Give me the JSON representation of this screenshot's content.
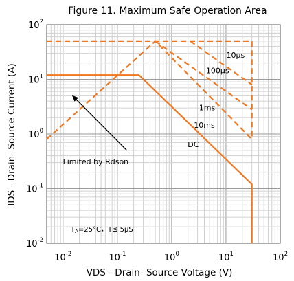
{
  "chart_data": {
    "type": "line",
    "title": "Figure 11. Maximum Safe Operation Area",
    "xlabel": "VDS - Drain- Source Voltage (V)",
    "ylabel": "IDS - Drain- Source Current (A)",
    "xscale": "log",
    "yscale": "log",
    "xlim": [
      0.005,
      100
    ],
    "ylim": [
      0.01,
      100
    ],
    "grid": true,
    "x_ticks": [
      {
        "base": "10",
        "exp": "-2",
        "value": 0.01
      },
      {
        "base": "10",
        "exp": "-1",
        "value": 0.1
      },
      {
        "base": "10",
        "exp": "0",
        "value": 1
      },
      {
        "base": "10",
        "exp": "1",
        "value": 10
      },
      {
        "base": "10",
        "exp": "2",
        "value": 100
      }
    ],
    "y_ticks": [
      {
        "base": "10",
        "exp": "-2",
        "value": 0.01
      },
      {
        "base": "10",
        "exp": "-1",
        "value": 0.1
      },
      {
        "base": "10",
        "exp": "0",
        "value": 1
      },
      {
        "base": "10",
        "exp": "1",
        "value": 10
      },
      {
        "base": "10",
        "exp": "2",
        "value": 100
      }
    ],
    "series": [
      {
        "name": "DC",
        "style": "solid",
        "color": "#f07820",
        "points": [
          [
            0.005,
            12
          ],
          [
            0.25,
            12
          ],
          [
            30,
            0.12
          ],
          [
            30,
            0.01
          ]
        ]
      },
      {
        "name": "10ms",
        "style": "dashed",
        "color": "#f07820",
        "points": [
          [
            0.005,
            0.8
          ],
          [
            0.5,
            50
          ],
          [
            30,
            0.8
          ]
        ]
      },
      {
        "name": "1ms",
        "style": "dashed",
        "color": "#f07820",
        "points": [
          [
            0.5,
            50
          ],
          [
            30,
            2.8
          ]
        ]
      },
      {
        "name": "100µs",
        "style": "dashed",
        "color": "#f07820",
        "points": [
          [
            2.2,
            50
          ],
          [
            30,
            8
          ]
        ]
      },
      {
        "name": "10µs",
        "style": "dashed",
        "color": "#f07820",
        "points": [
          [
            0.005,
            50
          ],
          [
            30,
            50
          ],
          [
            30,
            0.8
          ]
        ]
      }
    ],
    "annotations": [
      {
        "text": "10µs",
        "x": 15,
        "y": 25
      },
      {
        "text": "100µs",
        "x": 7,
        "y": 13
      },
      {
        "text": "1ms",
        "x": 4.5,
        "y": 2.7
      },
      {
        "text": "10ms",
        "x": 4,
        "y": 1.3
      },
      {
        "text": "DC",
        "x": 2.5,
        "y": 0.58
      },
      {
        "text": "Limited by Rdson",
        "x": 0.04,
        "y": 0.28
      }
    ],
    "arrow": {
      "from": [
        0.15,
        0.5
      ],
      "to": [
        0.015,
        5
      ]
    },
    "condition": {
      "prefix": "T",
      "sub": "A",
      "rest": "=25°C，T≤ 5µS"
    }
  }
}
